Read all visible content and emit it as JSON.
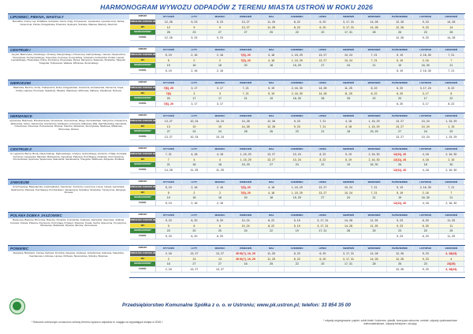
{
  "title": "HARMONOGRAM WYWOZU ODPADÓW Z TERENU MIASTA USTROŃ W ROKU 2026",
  "months": [
    "STYCZEŃ",
    "LUTY",
    "MARZEC",
    "KWIECIEŃ",
    "MAJ",
    "CZERWIEC",
    "LIPIEC",
    "SIERPIEŃ",
    "WRZESIEŃ",
    "PAŹDZIERNIK",
    "LISTOPAD",
    "GRUDZIEŃ"
  ],
  "row_labels": {
    "header": "ODPADY",
    "mixed": "ZMIESZANE KOMUNALNE",
    "bio": "BIO",
    "segregated": "SEGREGOWANE*",
    "ash": "POPIÓŁ"
  },
  "sections": [
    {
      "name": "LIPOWIEC; PIEKNA, WANTULY",
      "streets": "Bornačka, Czarny Las, Dziallków, Gościeba, Górna, Krąty, Krzywieniec, Lipowiecka, Lipowski Groń, Mórka, Nowocznia, Polinia, Polsgalniska, Prastnica, Spokojna, Sobotka, Walewa, Wantuly, Wiecznik",
      "mixed": [
        "12, 26",
        "9, 23",
        "9, 23",
        "13, 27",
        "11, 25",
        "8, 22",
        "6, 20",
        "3, 17, 31",
        "14, 28",
        "12, 26",
        "9, 23",
        "14, 28"
      ],
      "bio": [
        "12",
        "9",
        "9",
        "13, 27",
        "11, 25",
        "8, 22",
        "6, 20",
        "3, 17, 31",
        "14, 28",
        "12, 26",
        "9, 23",
        "14"
      ],
      "segregated": [
        "26",
        "23",
        "27",
        "27",
        "25",
        "22",
        "20",
        "17, 31",
        "28",
        "26",
        "23",
        "28"
      ],
      "ash": [
        "12, 26",
        "9, 23",
        "9, 23",
        "",
        "",
        "",
        "",
        "",
        "",
        "12, 26",
        "9, 23",
        "14, 28"
      ]
    },
    {
      "name": "CENTRUM I",
      "streets": "Aeryka, Błaszczyka, Cisińskiego, Cholewy, Daszyńskiego, Drzewnova, Gałczyńskiego, Jelenia, Kasprowicza, Kluczykowa, Kochanowskiego, Kopernika, Kosnowa, Konopnickiej, Kościelna, Kozłowicka, Krótka, Lipowa, Łączańskiego, Piastowska, Polna, Pochylona, Prusowska, Rynek, Słoneczna, Stawowa, Strażacka, Targowa, Traugutta, Tulipanowa, Wałowa, Wiśniowa, Żeromskiego",
      "mixed": [
        "5, 19",
        "2, 16",
        "2, 16",
        "7(6), 20",
        "4, 18",
        "1, 15, 29",
        "13, 27",
        "10, 24",
        "7, 21",
        "5, 19",
        "2, 16, 30",
        "7, 21"
      ],
      "bio": [
        "5",
        "2",
        "2",
        "7(6), 20",
        "4, 18",
        "1, 15, 29",
        "13, 27",
        "10, 24",
        "7, 21",
        "5, 19",
        "2, 16",
        "7"
      ],
      "segregated": [
        "19",
        "16",
        "16",
        "20",
        "18",
        "15, 29",
        "27",
        "24",
        "21",
        "19",
        "16, 30",
        "21"
      ],
      "ash": [
        "5, 19",
        "2, 16",
        "2, 16",
        "",
        "",
        "",
        "",
        "",
        "",
        "5, 19",
        "2, 16, 30",
        "7, 21"
      ]
    },
    {
      "name": "NIERODZIM",
      "streets": "Bładnicka, Boczna, Cicha, Chałupnicza, Dolna, Dzięgielówka, Graniczna, Hutnaberska, Kamienna, Kręta, Krótka, Łąkowa, Pocztowa, Spadzista, Wiejska, Wjazdowa, Wiśniowa, Zabłocie, Zatylikowa, Żwirowa",
      "mixed": [
        "7(6), 20",
        "3, 17",
        "3, 17",
        "7, 21",
        "5, 19",
        "2, 16, 30",
        "14, 28",
        "11, 25",
        "8, 22",
        "6, 20",
        "3, 17, 24",
        "8, 22"
      ],
      "bio": [
        "7(6)",
        "3",
        "3",
        "7, 21",
        "5, 19",
        "2, 16, 30",
        "14, 28",
        "11, 25",
        "8, 22",
        "6, 20",
        "3, 17",
        "8"
      ],
      "segregated": [
        "20",
        "17",
        "17",
        "21",
        "19",
        "16, 30",
        "28",
        "25",
        "22",
        "20",
        "17",
        "22"
      ],
      "ash": [
        "7(6), 20",
        "3, 17",
        "3, 17",
        "",
        "",
        "",
        "",
        "",
        "",
        "6, 20",
        "3, 17",
        "8, 22"
      ]
    },
    {
      "name": "HERMANICE",
      "streets": "Agrestowa, Baśniowa, Brzoskwiniowa, Chmielowa, Czereśniowa, Długa, Dominikańska, Fabryczna, Folwarczna, Jabłoniowa, Jasna, Jaśminowa, Kaczeńców, Kwiatowa, Leszczyna, Malinowa, Miła, Nad Młynówką, Ogrodowa, Orzechowa, Owocowa, Poziomkowa, Różana, Śnieżna, Słowiczek, Storczykowa, Śliwkowa, Wiklinowa, Wrzosowa, Zielona",
      "mixed": [
        "13, 27",
        "10, 24",
        "10, 24",
        "14, 28",
        "12, 26",
        "9, 23",
        "7, 21",
        "4, 18",
        "1, 15, 29",
        "13, 27",
        "10, 24",
        "1, 15, 29"
      ],
      "bio": [
        "13",
        "10",
        "10",
        "14, 28",
        "12, 26",
        "9, 23",
        "7, 21",
        "4, 18",
        "1, 15, 29",
        "13, 27",
        "10, 24",
        "1, 15"
      ],
      "segregated": [
        "27",
        "24",
        "24",
        "28",
        "26",
        "23",
        "21",
        "18",
        "15, 29",
        "27",
        "24",
        "29"
      ],
      "ash": [
        "13, 27",
        "10, 24",
        "10, 24",
        "",
        "",
        "",
        "",
        "",
        "",
        "13, 27",
        "10, 24",
        "1, 15, 29"
      ]
    },
    {
      "name": "CENTRUM II",
      "streets": "Al. Legionów, Barna, Brody, Daszyńskiego, Dąbrowskiego, Grażyny, Grażyńskiego, Hutnicza, 3 Maja, Konwalia, Kuźnicza, Lipowiecka, Młyńska, Mickiewicza, Ogrodowa, Parkowa, Pod Skarpą, Polańska, Pod Czantorią, Porzeczkowa, Sportowa, Spacerowa, Stalmacha, Sienkiewicza, Traugutta, Wiklinowa, Zdrojowa, Źródlana",
      "mixed": [
        "7, 21",
        "4, 18",
        "4, 18",
        "1, 15, 29",
        "13, 27",
        "10, 24",
        "8, 22",
        "5, 19",
        "2, 16, 30",
        "12(11), 26",
        "4, 18",
        "2, 16, 30"
      ],
      "bio": [
        "7",
        "4",
        "4",
        "1, 15, 29",
        "13, 27",
        "10, 24",
        "8, 22",
        "5, 19",
        "2, 16, 30",
        "12(11), 26",
        "4, 18",
        "2, 16"
      ],
      "segregated": [
        "21",
        "18",
        "18",
        "15, 29",
        "27",
        "24",
        "22",
        "19",
        "16, 30",
        "26",
        "18",
        "30"
      ],
      "ash": [
        "14, 28",
        "11, 25",
        "11, 25",
        "",
        "",
        "",
        "",
        "",
        "",
        "12(11), 26",
        "4, 18",
        "2, 16, 30"
      ]
    },
    {
      "name": "ZAWODZIE",
      "streets": "Armii Krajowej, Bełwederska, Gościradowiec, Kamieniec, Kuźnicza, Leszczyna, Lesna, Liliowa, Łączańska, Nadrzeczna, Parkowa, Pod Skarpą, Pod Zamkiem, Sanatoryjna, Szpitalna, Strażacka, Turystyczna, Zdrojowa, Zimowa",
      "mixed": [
        "5, 19",
        "2, 16",
        "2, 16",
        "7(6), 20",
        "4, 18",
        "1, 15, 29",
        "13, 27",
        "10, 24",
        "7, 21",
        "5, 19",
        "2, 16, 30",
        "7, 21"
      ],
      "bio": [
        "5",
        "2",
        "2",
        "7(6), 20",
        "4, 18",
        "1, 15, 29",
        "13, 27",
        "10, 24",
        "7, 21",
        "5, 19",
        "2, 16",
        "7"
      ],
      "segregated": [
        "19",
        "16",
        "16",
        "20",
        "18",
        "15, 29",
        "27",
        "24",
        "21",
        "19",
        "16, 30",
        "21"
      ],
      "ash": [
        "5, 19",
        "2, 16",
        "2, 16",
        "",
        "",
        "",
        "",
        "",
        "",
        "12(11), 26",
        "4, 18",
        "2, 16, 30"
      ]
    },
    {
      "name": "POLANA DOBKA JASZOWIEC",
      "streets": "Baranowa, Baśniów, Brzozowa, Bukowa, Cholerka, Fromatnika, Grabowa, Jastrzębia, Jaworowa, Jodłowa, Kozowa, Orlowa, Polanna, Poprzecze, Pod Grapą, Przełęcz, Równica, Smoła, Sucha, Słoneczna, Turystyczna, Wczasowa, Widokowa, Wysoka, Złociste, Żermanowa",
      "mixed": [
        "9, 23",
        "6, 20",
        "6, 20",
        "10, 24",
        "8, 22",
        "5, 19",
        "3, 17, 31",
        "14, 28",
        "11, 25",
        "9, 23",
        "6, 20",
        "11, 25"
      ],
      "bio": [
        "9",
        "6",
        "6",
        "10, 24",
        "8, 22",
        "5, 19",
        "3, 17, 31",
        "14, 28",
        "11, 25",
        "9, 23",
        "6, 20",
        "11"
      ],
      "segregated": [
        "23",
        "20",
        "20",
        "24",
        "22",
        "19",
        "17, 31",
        "28",
        "25",
        "23",
        "20",
        "25"
      ],
      "ash": [
        "9, 23",
        "6, 20",
        "6, 20",
        "",
        "",
        "",
        "",
        "",
        "",
        "9, 23",
        "6, 20",
        "11, 25"
      ]
    },
    {
      "name": "PONIWIEC",
      "streets": "Akacjowa, Bażantów, Cisowa, Dębowa, Drozdów, Głogowa, Grabowa, Jarzębinowa, Kalinowa, Katowicka, Kasztanowa, Limbowa, Lipowa, Olchowa, Skowronków, Szkolna, Wiązowa",
      "mixed": [
        "2, 16",
        "13, 27",
        "13, 27",
        "30 III(?), 16, 29",
        "11, 25",
        "8, 22",
        "6, 20",
        "3, 17, 31",
        "14, 28",
        "12, 26",
        "9, 23",
        "4, 18(23)"
      ],
      "bio": [
        "2",
        "13",
        "13",
        "30 III(?), 16, 29",
        "11, 25",
        "8, 22",
        "6, 20",
        "3, 17, 31",
        "14, 28",
        "12, 26",
        "9, 23",
        "4"
      ],
      "segregated": [
        "16",
        "27",
        "27",
        "16",
        "25",
        "22",
        "20",
        "17, 31",
        "28",
        "26",
        "23",
        "23(25)"
      ],
      "ash": [
        "2, 16",
        "13, 27",
        "13, 27",
        "",
        "",
        "",
        "",
        "",
        "",
        "12, 26",
        "9, 23",
        "4, 18(23)"
      ]
    }
  ],
  "footer": {
    "company": "Przedsiębiorstwo Komunalne Spółka z o. o. w Ustroniu; www.pk.ustron.pl; telefon: 33 854 35 00",
    "note_left": "* Bobowni czerwonym oznaczono zmiany terminu wywozu odpadów w. wagaja na wypadające święta w 2026 r.",
    "note_right": "* odpady segregowane: papier, szkło białe i kolorowe, plastik, tworzywa sztuczne, metale, odpady opakowaniowe wielomateriałowe, odpady tekstylne i obciąży"
  },
  "colors": {
    "title": "#2a59a8",
    "mixed": "#5a5a5a",
    "bio": "#f2df3a",
    "segregated": "#3a8a3d",
    "change_highlight": "#d01919"
  }
}
